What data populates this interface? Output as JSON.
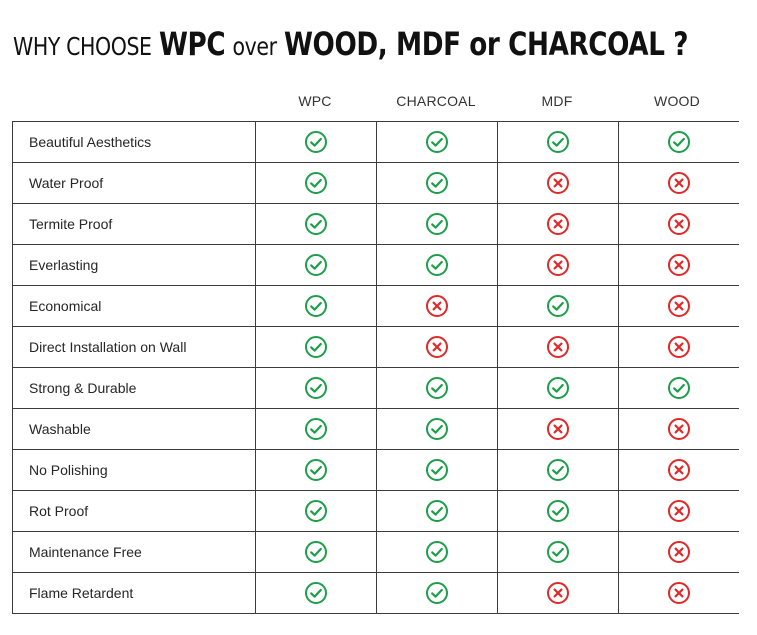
{
  "headline": {
    "part1": "WHY CHOOSE",
    "part2": "WPC",
    "part3": "over",
    "part4": "WOOD, MDF or CHARCOAL ?"
  },
  "columns": [
    "WPC",
    "CHARCOAL",
    "MDF",
    "WOOD"
  ],
  "colors": {
    "check": "#1e9e4a",
    "cross": "#e02929",
    "border": "#3c3c3c"
  },
  "icons": {
    "yes": "check-circle-icon",
    "no": "x-circle-icon"
  },
  "rows": [
    {
      "feature": "Beautiful Aesthetics",
      "values": [
        "yes",
        "yes",
        "yes",
        "yes"
      ]
    },
    {
      "feature": "Water Proof",
      "values": [
        "yes",
        "yes",
        "no",
        "no"
      ]
    },
    {
      "feature": "Termite Proof",
      "values": [
        "yes",
        "yes",
        "no",
        "no"
      ]
    },
    {
      "feature": "Everlasting",
      "values": [
        "yes",
        "yes",
        "no",
        "no"
      ]
    },
    {
      "feature": "Economical",
      "values": [
        "yes",
        "no",
        "yes",
        "no"
      ]
    },
    {
      "feature": "Direct Installation on Wall",
      "values": [
        "yes",
        "no",
        "no",
        "no"
      ]
    },
    {
      "feature": "Strong & Durable",
      "values": [
        "yes",
        "yes",
        "yes",
        "yes"
      ]
    },
    {
      "feature": "Washable",
      "values": [
        "yes",
        "yes",
        "no",
        "no"
      ]
    },
    {
      "feature": "No Polishing",
      "values": [
        "yes",
        "yes",
        "yes",
        "no"
      ]
    },
    {
      "feature": "Rot Proof",
      "values": [
        "yes",
        "yes",
        "yes",
        "no"
      ]
    },
    {
      "feature": "Maintenance Free",
      "values": [
        "yes",
        "yes",
        "yes",
        "no"
      ]
    },
    {
      "feature": "Flame Retardent",
      "values": [
        "yes",
        "yes",
        "no",
        "no"
      ]
    }
  ]
}
